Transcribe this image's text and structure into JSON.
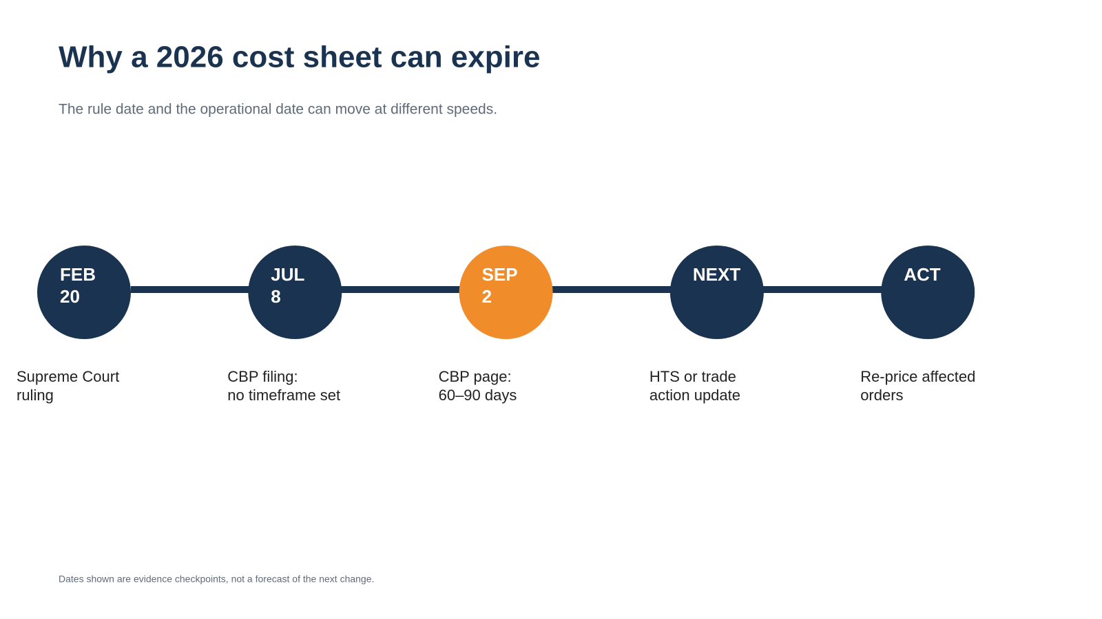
{
  "title": "Why a 2026 cost sheet can expire",
  "subtitle": "The rule date and the operational date can move at different speeds.",
  "nodes": [
    {
      "label": [
        "FEB",
        "20"
      ],
      "description": [
        "Supreme Court",
        "ruling"
      ],
      "color": "#1a3350"
    },
    {
      "label": [
        "JUL",
        "8"
      ],
      "description": [
        "CBP filing:",
        "no timeframe set"
      ],
      "color": "#1a3350"
    },
    {
      "label": [
        "SEP",
        "2"
      ],
      "description": [
        "CBP page:",
        "60–90 days"
      ],
      "color": "#f08c2a"
    },
    {
      "label": [
        "NEXT"
      ],
      "description": [
        "HTS or trade",
        "action update"
      ],
      "color": "#1a3350"
    },
    {
      "label": [
        "ACT"
      ],
      "description": [
        "Re-price affected",
        "orders"
      ],
      "color": "#1a3350"
    }
  ],
  "footnote": "Dates shown are evidence checkpoints, not a forecast of the next change."
}
